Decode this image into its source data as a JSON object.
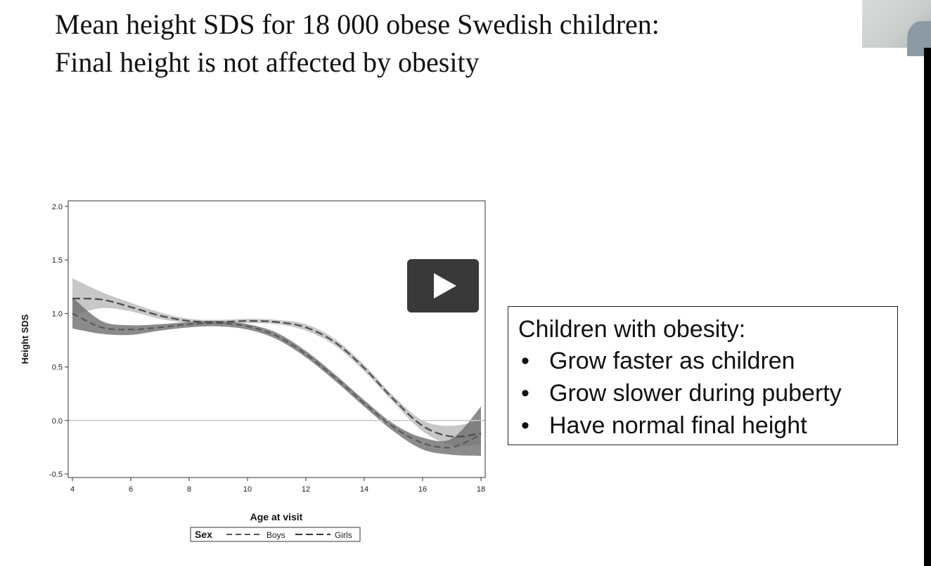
{
  "slide": {
    "title_line1": "Mean height SDS for 18 000 obese Swedish children:",
    "title_line2": "Final height is not affected by obesity"
  },
  "notes": {
    "heading": "Children with obesity:",
    "bullets": [
      "Grow faster as children",
      "Grow slower during puberty",
      "Have normal final height"
    ]
  },
  "video": {
    "play_icon": "play-icon"
  },
  "chart_data": {
    "type": "line",
    "title": "",
    "xlabel": "Age at visit",
    "ylabel": "Height SDS",
    "xlim": [
      4,
      18
    ],
    "ylim": [
      -0.5,
      2.0
    ],
    "xticks": [
      4,
      6,
      8,
      10,
      12,
      14,
      16,
      18
    ],
    "yticks": [
      -0.5,
      0.0,
      0.5,
      1.0,
      1.5,
      2.0
    ],
    "ytick_labels": [
      "-0.5",
      "0.0",
      "0.5",
      "1.0",
      "1.5",
      "2.0"
    ],
    "reference_line_y": 0.0,
    "legend": {
      "title": "Sex",
      "placement": "bottom"
    },
    "series": [
      {
        "name": "Boys",
        "color": "#5a5a5a",
        "band_color": "#6e6e6e",
        "x": [
          4,
          5,
          6,
          7,
          8,
          9,
          10,
          11,
          12,
          13,
          14,
          15,
          16,
          17,
          18
        ],
        "y": [
          1.0,
          0.87,
          0.85,
          0.87,
          0.9,
          0.91,
          0.88,
          0.79,
          0.62,
          0.4,
          0.16,
          -0.06,
          -0.21,
          -0.25,
          -0.13
        ],
        "lower": [
          0.86,
          0.81,
          0.8,
          0.84,
          0.87,
          0.88,
          0.85,
          0.76,
          0.59,
          0.37,
          0.13,
          -0.1,
          -0.27,
          -0.32,
          -0.33
        ],
        "upper": [
          1.15,
          0.93,
          0.89,
          0.9,
          0.92,
          0.93,
          0.9,
          0.82,
          0.65,
          0.43,
          0.19,
          -0.03,
          -0.16,
          -0.17,
          0.13
        ]
      },
      {
        "name": "Girls",
        "color": "#4a4a4a",
        "band_color": "#bdbdbd",
        "x": [
          4,
          5,
          6,
          7,
          8,
          9,
          10,
          11,
          12,
          13,
          14,
          15,
          16,
          17,
          18
        ],
        "y": [
          1.14,
          1.13,
          1.06,
          0.98,
          0.93,
          0.92,
          0.93,
          0.92,
          0.87,
          0.73,
          0.49,
          0.2,
          -0.05,
          -0.15,
          -0.12
        ],
        "lower": [
          0.98,
          1.05,
          1.02,
          0.95,
          0.91,
          0.9,
          0.91,
          0.9,
          0.84,
          0.7,
          0.46,
          0.17,
          -0.1,
          -0.23,
          -0.22
        ],
        "upper": [
          1.33,
          1.2,
          1.1,
          1.01,
          0.95,
          0.94,
          0.95,
          0.94,
          0.9,
          0.76,
          0.52,
          0.23,
          0.0,
          -0.05,
          0.0
        ]
      }
    ]
  }
}
